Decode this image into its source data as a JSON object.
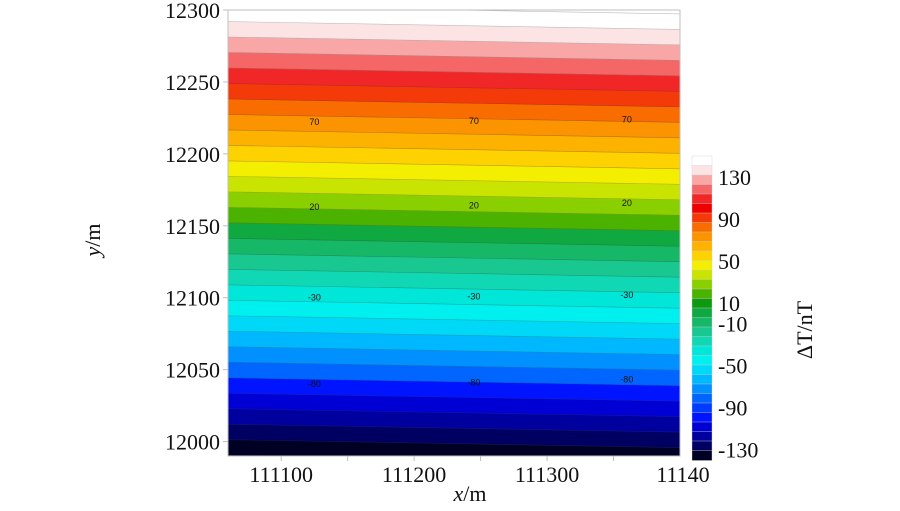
{
  "chart_data": {
    "type": "contour",
    "xlabel_var": "x",
    "xlabel_unit": "/m",
    "ylabel_var": "y",
    "ylabel_unit": "/m",
    "xlim": [
      111060,
      111400
    ],
    "ylim": [
      11990,
      12300
    ],
    "x_ticks": [
      111100,
      111200,
      111300
    ],
    "x_tick_labels": [
      "111100",
      "111200",
      "111300"
    ],
    "x_edge_label": "11140",
    "y_ticks": [
      12000,
      12050,
      12100,
      12150,
      12200,
      12250,
      12300
    ],
    "y_tick_labels": [
      "12000",
      "12050",
      "12100",
      "12150",
      "12200",
      "12250",
      "12300"
    ],
    "field": {
      "description_of_variation": "ΔT varies nearly linearly with y, slightly higher to the right",
      "delta_T_at_y": [
        {
          "y": 11990,
          "value": -138
        },
        {
          "y": 12300,
          "value": 150
        }
      ],
      "x_gradient_per_100m": 1.5,
      "contour_interval": 10
    },
    "contour_labels": [
      {
        "text": "70",
        "x": 111125,
        "y": 12222
      },
      {
        "text": "70",
        "x": 111245,
        "y": 12223
      },
      {
        "text": "70",
        "x": 111360,
        "y": 12224
      },
      {
        "text": "20",
        "x": 111125,
        "y": 12163
      },
      {
        "text": "20",
        "x": 111245,
        "y": 12164
      },
      {
        "text": "20",
        "x": 111360,
        "y": 12166
      },
      {
        "text": "-30",
        "x": 111125,
        "y": 12100
      },
      {
        "text": "-30",
        "x": 111245,
        "y": 12101
      },
      {
        "text": "-30",
        "x": 111360,
        "y": 12102
      },
      {
        "text": "-80",
        "x": 111125,
        "y": 12040
      },
      {
        "text": "-80",
        "x": 111245,
        "y": 12041
      },
      {
        "text": "-80",
        "x": 111360,
        "y": 12043
      }
    ],
    "colorbar": {
      "title": "ΔT/nT",
      "range": [
        -140,
        150
      ],
      "tick_values": [
        130,
        90,
        50,
        10,
        -10,
        -50,
        -90,
        -130
      ],
      "tick_labels": [
        "130",
        "90",
        "50",
        "10",
        "-10",
        "-50",
        "-90",
        "-130"
      ],
      "colors_top_to_bottom": [
        "#ffffff",
        "#fde4e4",
        "#f9a6a6",
        "#f56666",
        "#f12626",
        "#ee0000",
        "#f53a0a",
        "#f96d00",
        "#fb9400",
        "#fdb200",
        "#fdd200",
        "#f4ef00",
        "#c8e400",
        "#8ad000",
        "#4cb200",
        "#0e9a10",
        "#10a840",
        "#16b868",
        "#18c890",
        "#10d8b4",
        "#00e6d8",
        "#00f0f0",
        "#00d8f8",
        "#00b8ff",
        "#0090ff",
        "#0066ff",
        "#003cff",
        "#0014ff",
        "#0000d4",
        "#00009e",
        "#000062",
        "#000024"
      ]
    },
    "grid": false,
    "legend": "none"
  }
}
